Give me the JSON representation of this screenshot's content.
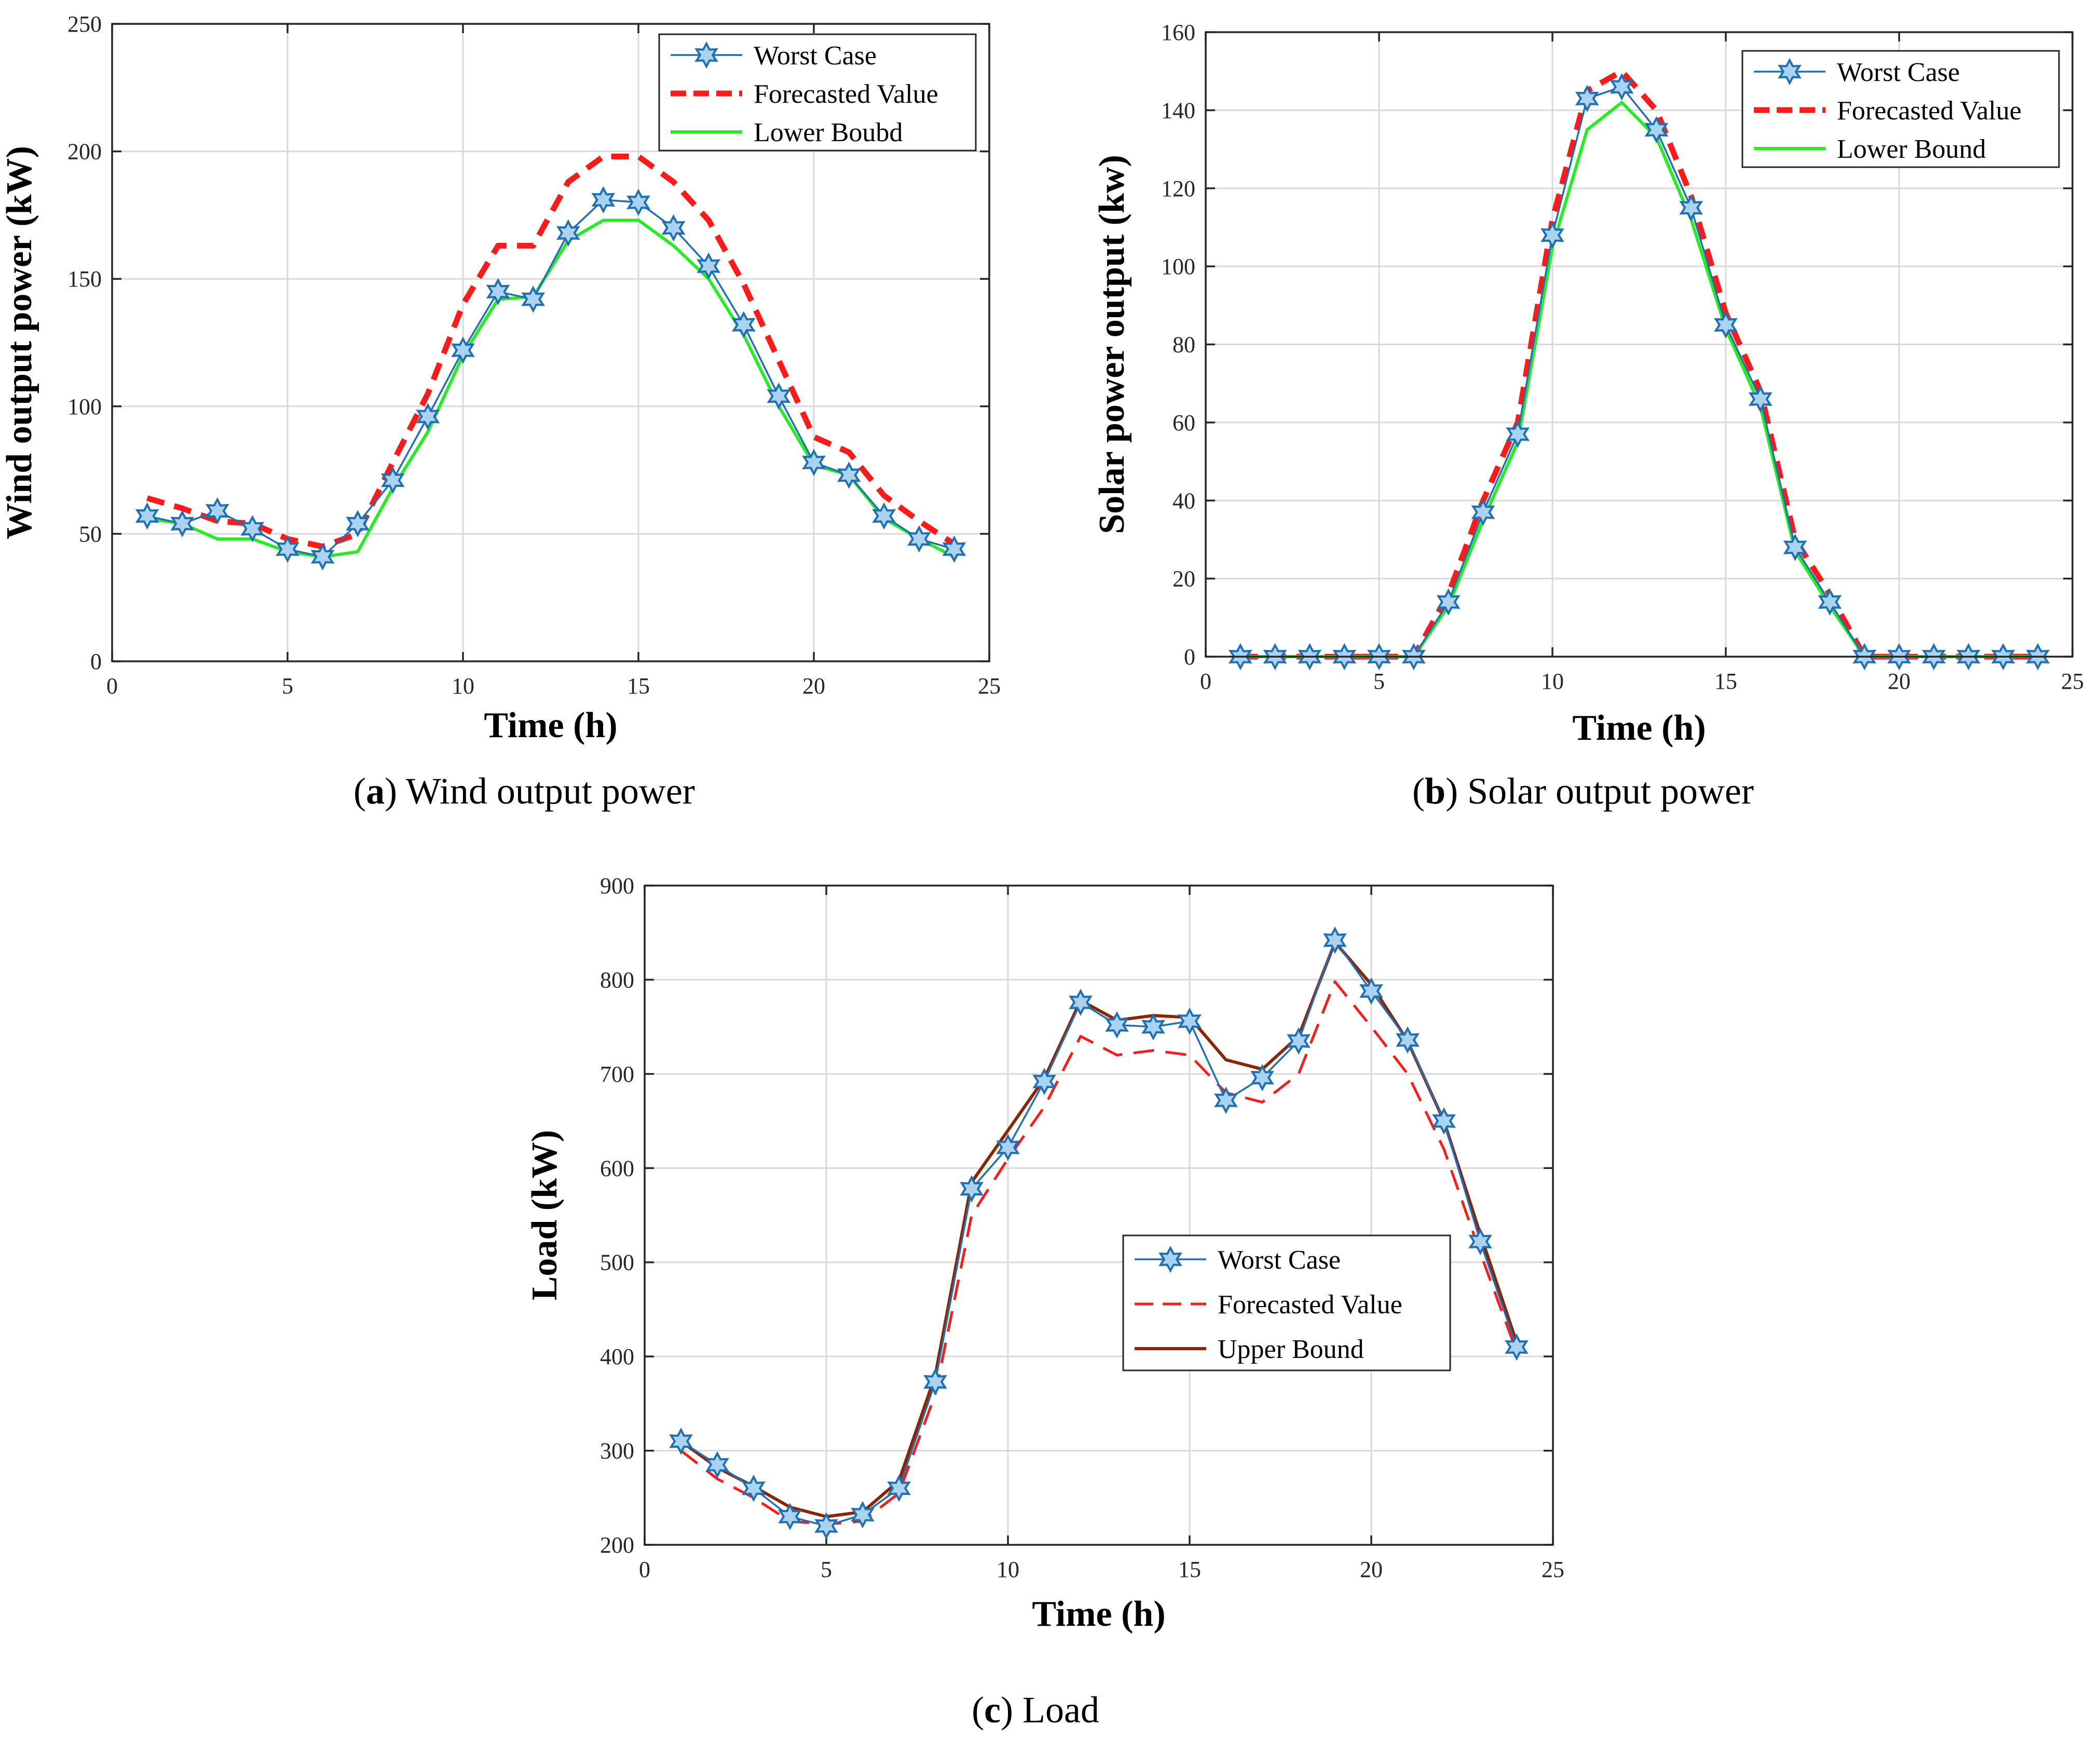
{
  "colors": {
    "worst": "#1f6fb5",
    "worst_star_fill": "#a9d3ee",
    "forecast": "#ff1a1a",
    "lower": "#22ee22",
    "upper": "#8b2500"
  },
  "chart_data": [
    {
      "id": "a",
      "type": "line",
      "caption_letter": "a",
      "caption_text": "Wind output power",
      "xlabel": "Time (h)",
      "ylabel": "Wind output power (kW)",
      "xlim": [
        0,
        25
      ],
      "ylim": [
        0,
        250
      ],
      "xticks": [
        0,
        5,
        10,
        15,
        20,
        25
      ],
      "yticks": [
        0,
        50,
        100,
        150,
        200,
        250
      ],
      "grid": true,
      "legend_position": "top-right",
      "x": [
        1,
        2,
        3,
        4,
        5,
        6,
        7,
        8,
        9,
        10,
        11,
        12,
        13,
        14,
        15,
        16,
        17,
        18,
        19,
        20,
        21,
        22,
        23,
        24
      ],
      "series": [
        {
          "name": "Worst Case",
          "style": "worst",
          "values": [
            57,
            54,
            59,
            52,
            44,
            41,
            54,
            71,
            96,
            122,
            145,
            142,
            168,
            181,
            180,
            170,
            155,
            132,
            104,
            78,
            73,
            57,
            48,
            44
          ]
        },
        {
          "name": "Forecasted Value",
          "style": "forecast",
          "values": [
            64,
            60,
            55,
            54,
            48,
            45,
            50,
            78,
            105,
            140,
            163,
            163,
            188,
            198,
            198,
            188,
            173,
            148,
            118,
            88,
            82,
            65,
            55,
            46
          ]
        },
        {
          "name": "Lower Boubd",
          "style": "lower",
          "values": [
            56,
            54,
            48,
            48,
            43,
            41,
            43,
            68,
            90,
            120,
            142,
            143,
            165,
            173,
            173,
            163,
            150,
            128,
            100,
            77,
            73,
            56,
            48,
            41
          ]
        }
      ]
    },
    {
      "id": "b",
      "type": "line",
      "caption_letter": "b",
      "caption_text": "Solar output power",
      "xlabel": "Time (h)",
      "ylabel": "Solar power output (kw)",
      "xlim": [
        0,
        25
      ],
      "ylim": [
        0,
        160
      ],
      "xticks": [
        0,
        5,
        10,
        15,
        20,
        25
      ],
      "yticks": [
        0,
        20,
        40,
        60,
        80,
        100,
        120,
        140,
        160
      ],
      "grid": true,
      "legend_position": "top-right",
      "x": [
        1,
        2,
        3,
        4,
        5,
        6,
        7,
        8,
        9,
        10,
        11,
        12,
        13,
        14,
        15,
        16,
        17,
        18,
        19,
        20,
        21,
        22,
        23,
        24
      ],
      "series": [
        {
          "name": "Worst Case",
          "style": "worst",
          "values": [
            0,
            0,
            0,
            0,
            0,
            0,
            14,
            37,
            57,
            108,
            143,
            146,
            135,
            115,
            85,
            66,
            28,
            14,
            0,
            0,
            0,
            0,
            0,
            0
          ]
        },
        {
          "name": "Forecasted Value",
          "style": "forecast",
          "values": [
            0,
            0,
            0,
            0,
            0,
            0,
            16,
            40,
            60,
            112,
            145,
            150,
            140,
            118,
            88,
            68,
            30,
            16,
            0,
            0,
            0,
            0,
            0,
            0
          ]
        },
        {
          "name": "Lower Bound",
          "style": "lower",
          "values": [
            0,
            0,
            0,
            0,
            0,
            0,
            13,
            35,
            55,
            105,
            135,
            142,
            133,
            112,
            84,
            64,
            27,
            13,
            0,
            0,
            0,
            0,
            0,
            0
          ]
        }
      ]
    },
    {
      "id": "c",
      "type": "line",
      "caption_letter": "c",
      "caption_text": "Load",
      "xlabel": "Time (h)",
      "ylabel": "Load (kW)",
      "xlim": [
        0,
        25
      ],
      "ylim": [
        200,
        900
      ],
      "xticks": [
        0,
        5,
        10,
        15,
        20,
        25
      ],
      "yticks": [
        200,
        300,
        400,
        500,
        600,
        700,
        800,
        900
      ],
      "grid": true,
      "legend_position": "center-right",
      "x": [
        1,
        2,
        3,
        4,
        5,
        6,
        7,
        8,
        9,
        10,
        11,
        12,
        13,
        14,
        15,
        16,
        17,
        18,
        19,
        20,
        21,
        22,
        23,
        24
      ],
      "series": [
        {
          "name": "Worst Case",
          "style": "worst",
          "values": [
            310,
            285,
            260,
            230,
            220,
            232,
            260,
            373,
            578,
            622,
            692,
            776,
            752,
            750,
            756,
            672,
            696,
            735,
            842,
            788,
            736,
            650,
            522,
            410
          ]
        },
        {
          "name": "Forecasted Value",
          "style": "forecast_thin",
          "values": [
            300,
            270,
            250,
            225,
            222,
            225,
            255,
            360,
            550,
            610,
            665,
            740,
            720,
            725,
            720,
            680,
            670,
            700,
            798,
            750,
            700,
            620,
            510,
            405
          ]
        },
        {
          "name": "Upper Bound",
          "style": "upper",
          "values": [
            310,
            282,
            262,
            240,
            230,
            235,
            268,
            380,
            585,
            640,
            695,
            778,
            757,
            762,
            760,
            715,
            705,
            740,
            840,
            795,
            735,
            650,
            530,
            415
          ]
        }
      ]
    }
  ]
}
